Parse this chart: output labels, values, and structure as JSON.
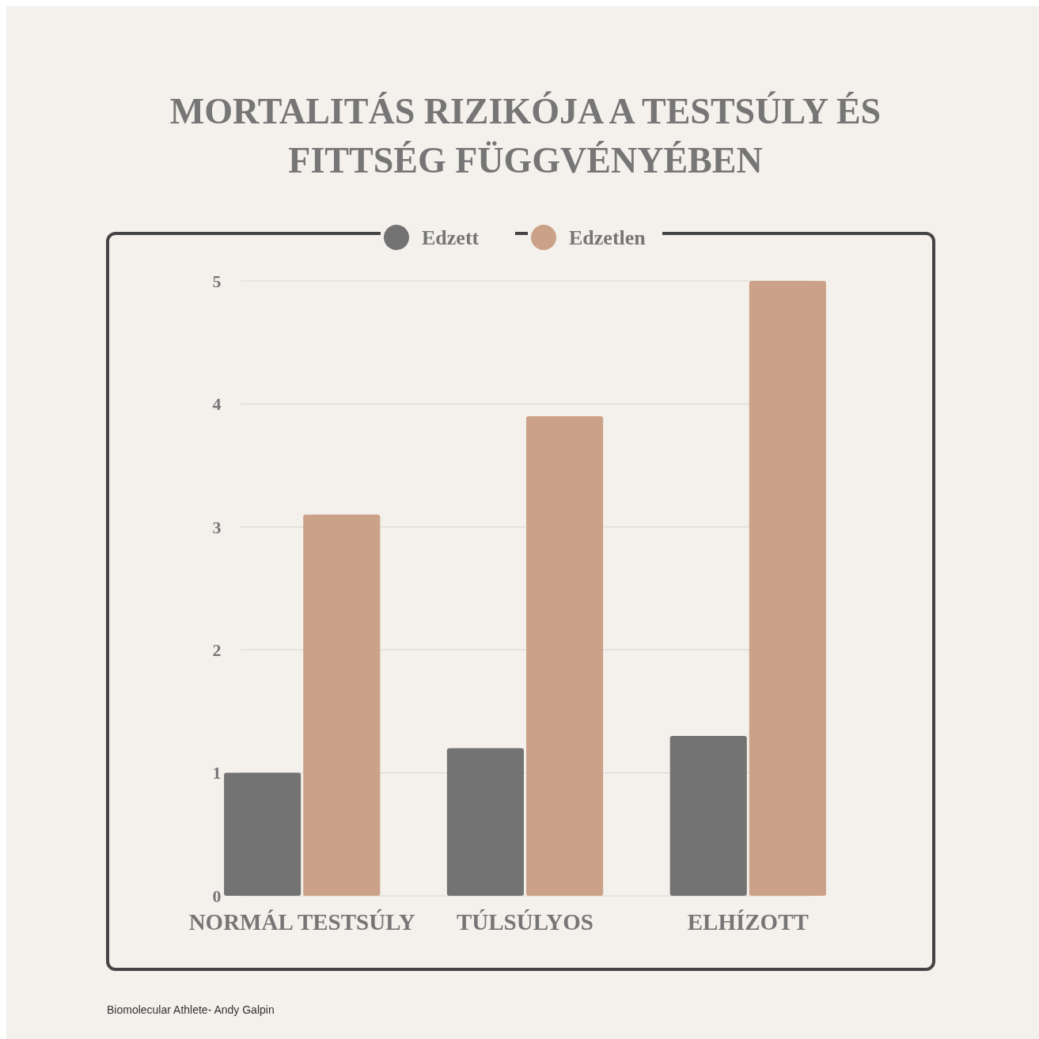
{
  "chart_data": {
    "type": "bar",
    "title": "MORTALITÁS RIZIKÓJA A TESTSÚLY ÉS FITTSÉG FÜGGVÉNYÉBEN",
    "categories": [
      "NORMÁL TESTSÚLY",
      "TÚLSÚLYOS",
      "ELHÍZOTT"
    ],
    "series": [
      {
        "name": "Edzett",
        "color": "#737373",
        "values": [
          1,
          1.2,
          1.3
        ]
      },
      {
        "name": "Edzetlen",
        "color": "#cba187",
        "values": [
          3.1,
          3.9,
          5
        ]
      }
    ],
    "ylim": [
      0,
      5
    ],
    "yticks": [
      0,
      1,
      2,
      3,
      4,
      5
    ],
    "grid": "y",
    "legend": "top",
    "annotations": [
      "Biomolecular Athlete- Andy Galpin"
    ]
  }
}
